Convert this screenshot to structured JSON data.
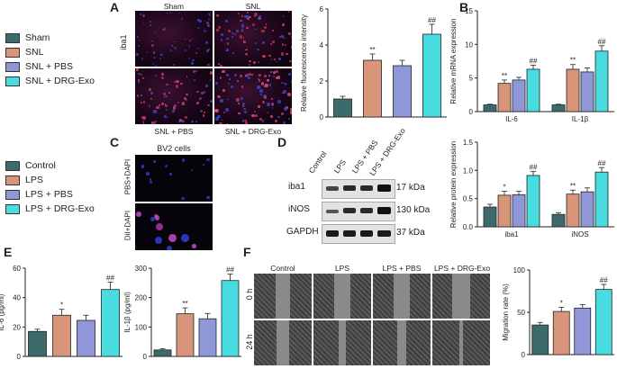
{
  "panels": {
    "A": "A",
    "B": "B",
    "C": "C",
    "D": "D",
    "E": "E",
    "F": "F"
  },
  "colors": {
    "control": "#3d6b6b",
    "lps": "#d9957a",
    "pbs": "#8f97d8",
    "exo": "#48dbe0"
  },
  "legend_top": [
    "Sham",
    "SNL",
    "SNL + PBS",
    "SNL + DRG-Exo"
  ],
  "legend_bottom": [
    "Control",
    "LPS",
    "LPS + PBS",
    "LPS + DRG-Exo"
  ],
  "panelA": {
    "top_labels": [
      "Sham",
      "SNL"
    ],
    "bottom_labels": [
      "SNL + PBS",
      "SNL + DRG-Exo"
    ],
    "row_label": "iba1"
  },
  "panelC": {
    "title": "BV2 cells",
    "rows": [
      "PBS+DAPI",
      "DiI+DAPI"
    ]
  },
  "panelD": {
    "lanes": [
      "Control",
      "LPS",
      "LPS + PBS",
      "LPS + DRG-Exo"
    ],
    "bands": [
      {
        "name": "iba1",
        "size": "17 kDa"
      },
      {
        "name": "iNOS",
        "size": "130 kDa"
      },
      {
        "name": "GAPDH",
        "size": "37 kDa"
      }
    ]
  },
  "panelF": {
    "cols": [
      "Control",
      "LPS",
      "LPS + PBS",
      "LPS + DRG-Exo"
    ],
    "rows": [
      "0 h",
      "24 h"
    ]
  },
  "chart_data": [
    {
      "id": "A",
      "type": "bar",
      "ylabel": "Relative fluorescence intensity",
      "ylim": [
        0,
        6
      ],
      "yticks": [
        0,
        2,
        4,
        6
      ],
      "categories": [
        "Sham",
        "SNL",
        "SNL + PBS",
        "SNL + DRG-Exo"
      ],
      "values": [
        1.0,
        3.15,
        2.85,
        4.6
      ],
      "errors": [
        0.15,
        0.35,
        0.3,
        0.55
      ],
      "annotations": [
        "",
        "**",
        "",
        "##"
      ]
    },
    {
      "id": "B1",
      "type": "bar",
      "ylabel": "Relative mRNA expression",
      "ylim": [
        0,
        15
      ],
      "yticks": [
        0,
        5,
        10,
        15
      ],
      "groups": [
        "IL-6",
        "IL-1β"
      ],
      "series": [
        {
          "values": [
            1.0,
            1.0
          ]
        },
        {
          "values": [
            4.2,
            6.3
          ]
        },
        {
          "values": [
            4.7,
            5.9
          ]
        },
        {
          "values": [
            6.3,
            9.0
          ]
        }
      ],
      "errors": [
        [
          0.1,
          0.1
        ],
        [
          0.5,
          0.7
        ],
        [
          0.4,
          0.6
        ],
        [
          0.6,
          0.8
        ]
      ],
      "annotations": [
        [
          "",
          ""
        ],
        [
          "**",
          "**"
        ],
        [
          "",
          ""
        ],
        [
          "##",
          "##"
        ]
      ]
    },
    {
      "id": "B2",
      "type": "bar",
      "ylabel": "Relative protein expression",
      "ylim": [
        0,
        1.5
      ],
      "yticks": [
        0.0,
        0.5,
        1.0,
        1.5
      ],
      "groups": [
        "iba1",
        "iNOS"
      ],
      "series": [
        {
          "values": [
            0.35,
            0.22
          ]
        },
        {
          "values": [
            0.56,
            0.58
          ]
        },
        {
          "values": [
            0.57,
            0.62
          ]
        },
        {
          "values": [
            0.91,
            0.97
          ]
        }
      ],
      "errors": [
        [
          0.05,
          0.03
        ],
        [
          0.07,
          0.07
        ],
        [
          0.06,
          0.07
        ],
        [
          0.07,
          0.08
        ]
      ],
      "annotations": [
        [
          "",
          ""
        ],
        [
          "*",
          "**"
        ],
        [
          "",
          ""
        ],
        [
          "##",
          "##"
        ]
      ]
    },
    {
      "id": "E1",
      "type": "bar",
      "ylabel": "IL-6 (pg/ml)",
      "ylim": [
        0,
        60
      ],
      "yticks": [
        0,
        20,
        40,
        60
      ],
      "categories": [
        "Control",
        "LPS",
        "LPS + PBS",
        "LPS + DRG-Exo"
      ],
      "values": [
        17,
        28,
        24.5,
        45.5
      ],
      "errors": [
        1.5,
        4,
        3.5,
        5
      ],
      "annotations": [
        "",
        "*",
        "",
        "##"
      ]
    },
    {
      "id": "E2",
      "type": "bar",
      "ylabel": "IL-1β (pg/ml)",
      "ylim": [
        0,
        300
      ],
      "yticks": [
        0,
        100,
        200,
        300
      ],
      "categories": [
        "Control",
        "LPS",
        "LPS + PBS",
        "LPS + DRG-Exo"
      ],
      "values": [
        22,
        145,
        128,
        258
      ],
      "errors": [
        4,
        20,
        18,
        22
      ],
      "annotations": [
        "",
        "**",
        "",
        "##"
      ]
    },
    {
      "id": "F",
      "type": "bar",
      "ylabel": "Migration rate (%)",
      "ylim": [
        0,
        100
      ],
      "yticks": [
        0,
        50,
        100
      ],
      "categories": [
        "Control",
        "LPS",
        "LPS + PBS",
        "LPS + DRG-Exo"
      ],
      "values": [
        35,
        51,
        55,
        77
      ],
      "errors": [
        3,
        5,
        4,
        6
      ],
      "annotations": [
        "",
        "*",
        "",
        "##"
      ]
    }
  ]
}
